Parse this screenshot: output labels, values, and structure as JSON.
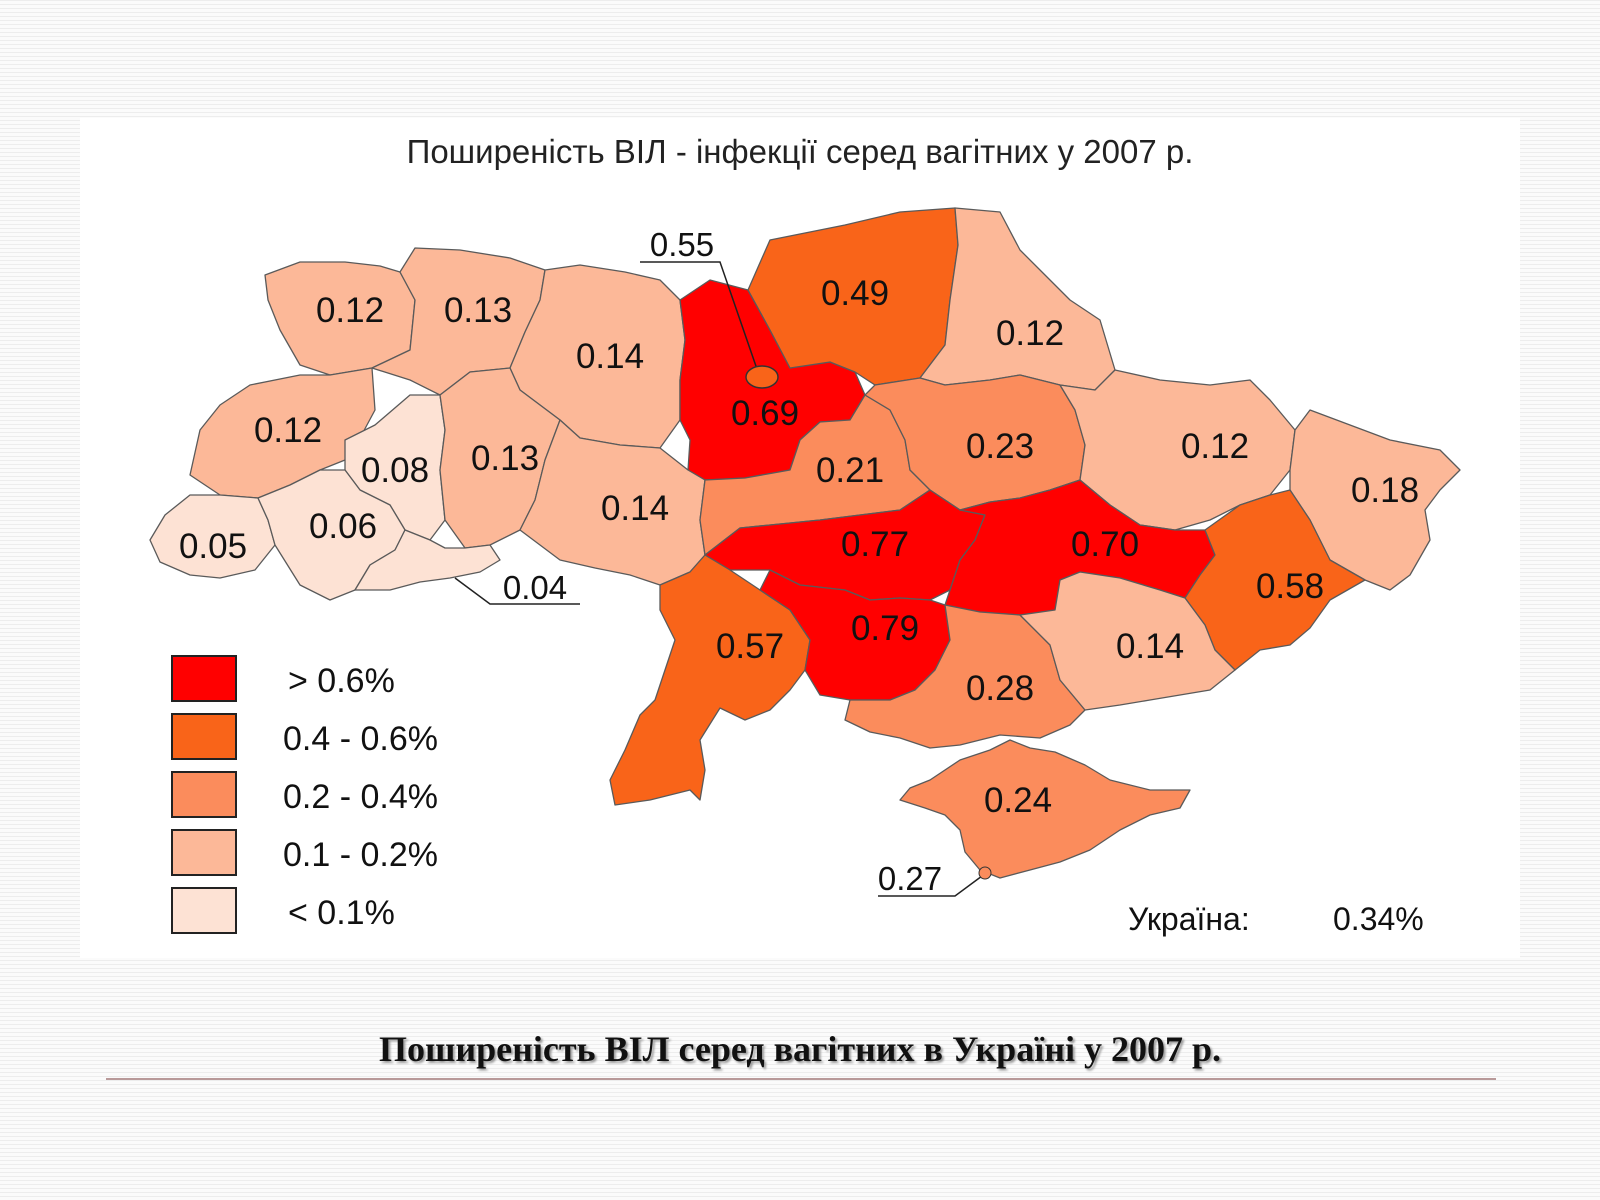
{
  "map": {
    "title": "Поширеність ВІЛ - інфекції серед вагітних у 2007 р.",
    "colors": {
      "gt06": "#ff0000",
      "r04_06": "#f96419",
      "r02_04": "#fb8c5c",
      "r01_02": "#fcb898",
      "lt01": "#fde2d4"
    },
    "regions": [
      {
        "name": "Volyn",
        "value": "0.12",
        "class": "r01_02"
      },
      {
        "name": "Rivne",
        "value": "0.13",
        "class": "r01_02"
      },
      {
        "name": "Zhytomyr",
        "value": "0.14",
        "class": "r01_02"
      },
      {
        "name": "Kyiv-oblast",
        "value": "0.69",
        "class": "gt06"
      },
      {
        "name": "Chernihiv",
        "value": "0.49",
        "class": "r04_06"
      },
      {
        "name": "Sumy",
        "value": "0.12",
        "class": "r01_02"
      },
      {
        "name": "Lviv",
        "value": "0.12",
        "class": "r01_02"
      },
      {
        "name": "Ternopil",
        "value": "0.08",
        "class": "lt01"
      },
      {
        "name": "Khmelnytskyi",
        "value": "0.13",
        "class": "r01_02"
      },
      {
        "name": "Vinnytsia",
        "value": "0.14",
        "class": "r01_02"
      },
      {
        "name": "Cherkasy",
        "value": "0.21",
        "class": "r02_04"
      },
      {
        "name": "Poltava",
        "value": "0.23",
        "class": "r02_04"
      },
      {
        "name": "Kharkiv",
        "value": "0.12",
        "class": "r01_02"
      },
      {
        "name": "Luhansk",
        "value": "0.18",
        "class": "r01_02"
      },
      {
        "name": "Zakarpattia",
        "value": "0.05",
        "class": "lt01"
      },
      {
        "name": "Ivano-Frankivsk",
        "value": "0.06",
        "class": "lt01"
      },
      {
        "name": "Chernivtsi",
        "value": "0.04",
        "class": "lt01"
      },
      {
        "name": "Kirovohrad",
        "value": "0.77",
        "class": "gt06"
      },
      {
        "name": "Dnipropetrovsk",
        "value": "0.70",
        "class": "gt06"
      },
      {
        "name": "Donetsk",
        "value": "0.58",
        "class": "r04_06"
      },
      {
        "name": "Odesa",
        "value": "0.57",
        "class": "r04_06"
      },
      {
        "name": "Mykolaiv",
        "value": "0.79",
        "class": "gt06"
      },
      {
        "name": "Kherson",
        "value": "0.28",
        "class": "r02_04"
      },
      {
        "name": "Zaporizhzhia",
        "value": "0.14",
        "class": "r01_02"
      },
      {
        "name": "Crimea",
        "value": "0.24",
        "class": "r02_04"
      }
    ],
    "callouts": {
      "kyiv_city": "0.55",
      "sevastopol": "0.27",
      "chernivtsi": "0.04"
    },
    "legend": [
      {
        "label": "> 0.6%",
        "class": "gt06"
      },
      {
        "label": "0.4 - 0.6%",
        "class": "r04_06"
      },
      {
        "label": "0.2 - 0.4%",
        "class": "r02_04"
      },
      {
        "label": "0.1 - 0.2%",
        "class": "r01_02"
      },
      {
        "label": "< 0.1%",
        "class": "lt01"
      }
    ],
    "total": {
      "label": "Україна:",
      "value": "0.34%"
    }
  },
  "caption": "Поширеність ВІЛ серед вагітних в Україні у 2007 р."
}
